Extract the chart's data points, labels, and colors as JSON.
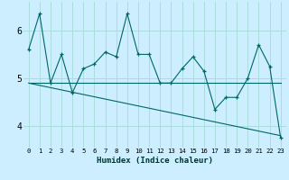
{
  "title": "",
  "xlabel": "Humidex (Indice chaleur)",
  "bg_color": "#cceeff",
  "grid_color": "#aadddd",
  "line_color": "#006666",
  "xlim": [
    -0.5,
    23.5
  ],
  "ylim": [
    3.55,
    6.6
  ],
  "yticks": [
    4,
    5,
    6
  ],
  "xtick_labels": [
    "0",
    "1",
    "2",
    "3",
    "4",
    "5",
    "6",
    "7",
    "8",
    "9",
    "10",
    "11",
    "12",
    "13",
    "14",
    "15",
    "16",
    "17",
    "18",
    "19",
    "20",
    "21",
    "22",
    "23"
  ],
  "series1_x": [
    0,
    1,
    2,
    3,
    4,
    5,
    6,
    7,
    8,
    9,
    10,
    11,
    12,
    13,
    14,
    15,
    16,
    17,
    18,
    19,
    20,
    21,
    22,
    23
  ],
  "series1_y": [
    5.6,
    6.35,
    4.9,
    5.5,
    4.7,
    5.2,
    5.3,
    5.55,
    5.45,
    6.35,
    5.5,
    5.5,
    4.9,
    4.9,
    5.2,
    5.45,
    5.15,
    4.35,
    4.6,
    4.6,
    5.0,
    5.7,
    5.25,
    3.75
  ],
  "series2_x": [
    0,
    23
  ],
  "series2_y": [
    4.9,
    3.8
  ],
  "series3_x": [
    0,
    23
  ],
  "series3_y": [
    4.9,
    4.9
  ]
}
